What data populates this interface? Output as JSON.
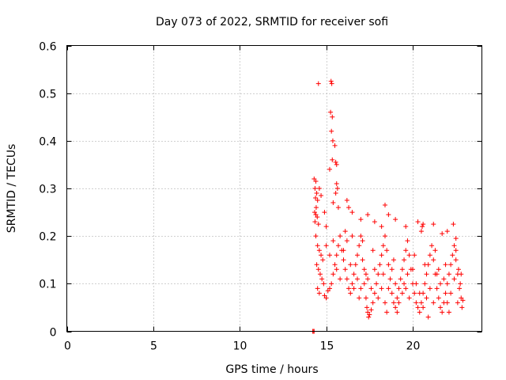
{
  "chart_data": {
    "type": "scatter",
    "title": "Day 073 of 2022, SRMTID for receiver sofi",
    "xlabel": "GPS time / hours",
    "ylabel": "SRMTID / TECUs",
    "xlim": [
      0,
      24
    ],
    "ylim": [
      0,
      0.6
    ],
    "x_ticks": [
      0,
      5,
      10,
      15,
      20
    ],
    "x_tick_labels": [
      "0",
      "5",
      "10",
      "15",
      "20"
    ],
    "y_ticks": [
      0,
      0.1,
      0.2,
      0.3,
      0.4,
      0.5,
      0.6
    ],
    "y_tick_labels": [
      "0",
      "0.1",
      "0.2",
      "0.3",
      "0.4",
      "0.5",
      "0.6"
    ],
    "grid": true,
    "marker": "+",
    "series": [
      {
        "name": "SRMTID",
        "color": "#ff0000",
        "points": [
          [
            14.22,
            0.0
          ],
          [
            14.25,
            0.0
          ],
          [
            14.3,
            0.0
          ],
          [
            14.55,
            0.52
          ],
          [
            15.28,
            0.525
          ],
          [
            15.32,
            0.52
          ],
          [
            15.25,
            0.46
          ],
          [
            15.35,
            0.45
          ],
          [
            15.3,
            0.42
          ],
          [
            15.38,
            0.4
          ],
          [
            15.5,
            0.39
          ],
          [
            15.55,
            0.355
          ],
          [
            15.6,
            0.35
          ],
          [
            15.35,
            0.36
          ],
          [
            15.2,
            0.34
          ],
          [
            14.3,
            0.32
          ],
          [
            14.4,
            0.315
          ],
          [
            14.35,
            0.3
          ],
          [
            14.45,
            0.29
          ],
          [
            14.38,
            0.28
          ],
          [
            14.5,
            0.275
          ],
          [
            14.42,
            0.26
          ],
          [
            14.33,
            0.25
          ],
          [
            14.4,
            0.245
          ],
          [
            14.48,
            0.24
          ],
          [
            14.35,
            0.23
          ],
          [
            14.55,
            0.225
          ],
          [
            14.6,
            0.3
          ],
          [
            14.7,
            0.285
          ],
          [
            15.6,
            0.31
          ],
          [
            15.65,
            0.3
          ],
          [
            15.55,
            0.29
          ],
          [
            15.4,
            0.27
          ],
          [
            15.7,
            0.26
          ],
          [
            14.9,
            0.25
          ],
          [
            15.0,
            0.22
          ],
          [
            16.2,
            0.275
          ],
          [
            16.3,
            0.26
          ],
          [
            16.5,
            0.25
          ],
          [
            17.0,
            0.235
          ],
          [
            17.4,
            0.245
          ],
          [
            17.8,
            0.23
          ],
          [
            18.4,
            0.265
          ],
          [
            18.6,
            0.245
          ],
          [
            18.2,
            0.22
          ],
          [
            19.0,
            0.235
          ],
          [
            19.6,
            0.22
          ],
          [
            20.5,
            0.21
          ],
          [
            20.6,
            0.225
          ],
          [
            21.2,
            0.225
          ],
          [
            21.7,
            0.205
          ],
          [
            22.0,
            0.21
          ],
          [
            22.35,
            0.225
          ],
          [
            22.5,
            0.195
          ],
          [
            20.3,
            0.23
          ],
          [
            20.55,
            0.22
          ],
          [
            14.4,
            0.2
          ],
          [
            14.5,
            0.18
          ],
          [
            14.6,
            0.17
          ],
          [
            14.7,
            0.16
          ],
          [
            14.8,
            0.15
          ],
          [
            14.45,
            0.14
          ],
          [
            14.55,
            0.13
          ],
          [
            14.65,
            0.12
          ],
          [
            14.75,
            0.11
          ],
          [
            14.85,
            0.1
          ],
          [
            14.5,
            0.09
          ],
          [
            14.6,
            0.08
          ],
          [
            14.9,
            0.075
          ],
          [
            15.0,
            0.07
          ],
          [
            15.1,
            0.085
          ],
          [
            15.2,
            0.09
          ],
          [
            15.3,
            0.1
          ],
          [
            15.4,
            0.12
          ],
          [
            15.5,
            0.14
          ],
          [
            15.6,
            0.16
          ],
          [
            15.7,
            0.18
          ],
          [
            15.8,
            0.2
          ],
          [
            15.9,
            0.17
          ],
          [
            16.0,
            0.15
          ],
          [
            16.1,
            0.13
          ],
          [
            16.2,
            0.11
          ],
          [
            16.3,
            0.09
          ],
          [
            16.4,
            0.08
          ],
          [
            16.5,
            0.1
          ],
          [
            16.6,
            0.12
          ],
          [
            16.7,
            0.14
          ],
          [
            16.8,
            0.16
          ],
          [
            16.9,
            0.18
          ],
          [
            17.0,
            0.2
          ],
          [
            17.1,
            0.15
          ],
          [
            17.2,
            0.1
          ],
          [
            17.3,
            0.07
          ],
          [
            17.35,
            0.05
          ],
          [
            17.4,
            0.04
          ],
          [
            17.45,
            0.03
          ],
          [
            17.5,
            0.035
          ],
          [
            17.6,
            0.045
          ],
          [
            17.7,
            0.06
          ],
          [
            17.8,
            0.08
          ],
          [
            17.9,
            0.1
          ],
          [
            18.0,
            0.12
          ],
          [
            18.1,
            0.14
          ],
          [
            18.2,
            0.16
          ],
          [
            18.3,
            0.18
          ],
          [
            18.4,
            0.2
          ],
          [
            18.5,
            0.17
          ],
          [
            18.6,
            0.14
          ],
          [
            18.7,
            0.11
          ],
          [
            18.8,
            0.08
          ],
          [
            18.9,
            0.06
          ],
          [
            19.0,
            0.05
          ],
          [
            19.1,
            0.07
          ],
          [
            19.2,
            0.09
          ],
          [
            19.3,
            0.11
          ],
          [
            19.4,
            0.13
          ],
          [
            19.5,
            0.15
          ],
          [
            19.6,
            0.17
          ],
          [
            19.7,
            0.19
          ],
          [
            19.8,
            0.16
          ],
          [
            19.9,
            0.13
          ],
          [
            20.0,
            0.1
          ],
          [
            20.1,
            0.08
          ],
          [
            20.2,
            0.06
          ],
          [
            20.3,
            0.05
          ],
          [
            20.4,
            0.04
          ],
          [
            20.5,
            0.06
          ],
          [
            20.6,
            0.08
          ],
          [
            20.7,
            0.1
          ],
          [
            20.8,
            0.12
          ],
          [
            20.9,
            0.14
          ],
          [
            21.0,
            0.16
          ],
          [
            21.1,
            0.18
          ],
          [
            21.2,
            0.15
          ],
          [
            21.3,
            0.12
          ],
          [
            21.4,
            0.09
          ],
          [
            21.5,
            0.07
          ],
          [
            21.6,
            0.05
          ],
          [
            21.7,
            0.04
          ],
          [
            21.8,
            0.06
          ],
          [
            21.9,
            0.08
          ],
          [
            22.0,
            0.1
          ],
          [
            22.1,
            0.12
          ],
          [
            22.2,
            0.14
          ],
          [
            22.3,
            0.16
          ],
          [
            22.4,
            0.18
          ],
          [
            22.5,
            0.15
          ],
          [
            22.6,
            0.12
          ],
          [
            22.7,
            0.09
          ],
          [
            22.8,
            0.07
          ],
          [
            22.85,
            0.05
          ],
          [
            22.9,
            0.065
          ],
          [
            22.75,
            0.1
          ],
          [
            22.65,
            0.13
          ],
          [
            15.0,
            0.18
          ],
          [
            15.2,
            0.16
          ],
          [
            15.4,
            0.19
          ],
          [
            15.6,
            0.13
          ],
          [
            15.8,
            0.11
          ],
          [
            16.0,
            0.17
          ],
          [
            16.2,
            0.19
          ],
          [
            16.4,
            0.14
          ],
          [
            16.6,
            0.09
          ],
          [
            16.8,
            0.11
          ],
          [
            17.0,
            0.09
          ],
          [
            17.2,
            0.13
          ],
          [
            17.4,
            0.11
          ],
          [
            17.6,
            0.09
          ],
          [
            17.8,
            0.13
          ],
          [
            18.0,
            0.07
          ],
          [
            18.2,
            0.09
          ],
          [
            18.4,
            0.06
          ],
          [
            18.6,
            0.09
          ],
          [
            18.8,
            0.13
          ],
          [
            19.0,
            0.1
          ],
          [
            19.2,
            0.06
          ],
          [
            19.4,
            0.08
          ],
          [
            19.6,
            0.09
          ],
          [
            19.8,
            0.07
          ],
          [
            20.0,
            0.13
          ],
          [
            20.2,
            0.1
          ],
          [
            20.4,
            0.08
          ],
          [
            20.6,
            0.05
          ],
          [
            20.8,
            0.07
          ],
          [
            21.0,
            0.09
          ],
          [
            21.2,
            0.06
          ],
          [
            21.4,
            0.12
          ],
          [
            21.6,
            0.1
          ],
          [
            21.8,
            0.11
          ],
          [
            22.0,
            0.06
          ],
          [
            22.2,
            0.08
          ],
          [
            22.4,
            0.11
          ],
          [
            22.6,
            0.06
          ],
          [
            22.8,
            0.12
          ],
          [
            16.1,
            0.21
          ],
          [
            16.5,
            0.2
          ],
          [
            17.1,
            0.19
          ],
          [
            17.7,
            0.17
          ],
          [
            18.3,
            0.12
          ],
          [
            18.9,
            0.15
          ],
          [
            19.5,
            0.1
          ],
          [
            20.1,
            0.16
          ],
          [
            20.7,
            0.14
          ],
          [
            21.3,
            0.17
          ],
          [
            21.9,
            0.14
          ],
          [
            22.5,
            0.17
          ],
          [
            17.3,
            0.12
          ],
          [
            19.1,
            0.04
          ],
          [
            20.9,
            0.03
          ],
          [
            22.1,
            0.04
          ],
          [
            18.5,
            0.04
          ],
          [
            21.5,
            0.13
          ],
          [
            19.7,
            0.12
          ],
          [
            16.9,
            0.07
          ]
        ]
      }
    ]
  }
}
